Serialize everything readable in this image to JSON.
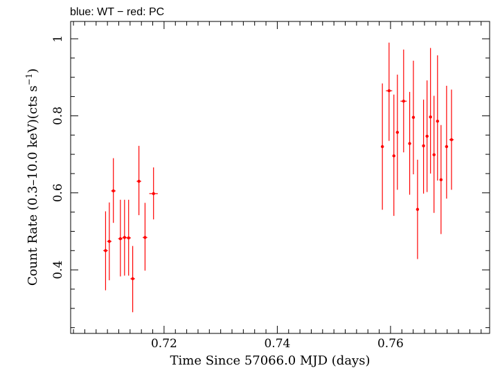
{
  "chart_data": {
    "type": "scatter",
    "title": "blue: WT − red: PC",
    "xlabel": "Time Since 57066.0 MJD (days)",
    "ylabel_prefix": "Count Rate (0.3–10.0 keV)(cts s",
    "ylabel_sup": "−1",
    "ylabel_suffix": ")",
    "xlim": [
      0.7035,
      0.7775
    ],
    "ylim": [
      0.235,
      1.045
    ],
    "xticks": [
      0.72,
      0.74,
      0.76
    ],
    "xtick_labels": [
      "0.72",
      "0.74",
      "0.76"
    ],
    "yticks": [
      0.4,
      0.6,
      0.8,
      1.0
    ],
    "ytick_labels": [
      "0.4",
      "0.6",
      "0.8",
      "1"
    ],
    "grid": false,
    "series": [
      {
        "color": "#ff0000",
        "points": [
          {
            "x": 0.70967,
            "y": 0.45,
            "xerr": 0.0004,
            "ylo": 0.347,
            "yhi": 0.552
          },
          {
            "x": 0.71033,
            "y": 0.474,
            "xerr": 0.0004,
            "ylo": 0.373,
            "yhi": 0.575
          },
          {
            "x": 0.71105,
            "y": 0.605,
            "xerr": 0.0004,
            "ylo": 0.522,
            "yhi": 0.69
          },
          {
            "x": 0.71229,
            "y": 0.481,
            "xerr": 0.0004,
            "ylo": 0.383,
            "yhi": 0.582
          },
          {
            "x": 0.71302,
            "y": 0.484,
            "xerr": 0.0004,
            "ylo": 0.385,
            "yhi": 0.582
          },
          {
            "x": 0.71374,
            "y": 0.483,
            "xerr": 0.0004,
            "ylo": 0.385,
            "yhi": 0.582
          },
          {
            "x": 0.71446,
            "y": 0.377,
            "xerr": 0.0004,
            "ylo": 0.29,
            "yhi": 0.462
          },
          {
            "x": 0.71556,
            "y": 0.63,
            "xerr": 0.0004,
            "ylo": 0.542,
            "yhi": 0.722
          },
          {
            "x": 0.71664,
            "y": 0.484,
            "xerr": 0.0004,
            "ylo": 0.398,
            "yhi": 0.574
          },
          {
            "x": 0.71814,
            "y": 0.598,
            "xerr": 0.00075,
            "ylo": 0.531,
            "yhi": 0.666
          },
          {
            "x": 0.75856,
            "y": 0.72,
            "xerr": 0.00025,
            "ylo": 0.556,
            "yhi": 0.884
          },
          {
            "x": 0.75974,
            "y": 0.865,
            "xerr": 0.00055,
            "ylo": 0.735,
            "yhi": 0.99
          },
          {
            "x": 0.76059,
            "y": 0.696,
            "xerr": 0.00025,
            "ylo": 0.54,
            "yhi": 0.855
          },
          {
            "x": 0.76121,
            "y": 0.757,
            "xerr": 0.00025,
            "ylo": 0.608,
            "yhi": 0.907
          },
          {
            "x": 0.76231,
            "y": 0.838,
            "xerr": 0.00055,
            "ylo": 0.705,
            "yhi": 0.972
          },
          {
            "x": 0.76338,
            "y": 0.728,
            "xerr": 0.00025,
            "ylo": 0.595,
            "yhi": 0.862
          },
          {
            "x": 0.76404,
            "y": 0.796,
            "xerr": 0.00025,
            "ylo": 0.648,
            "yhi": 0.943
          },
          {
            "x": 0.76477,
            "y": 0.557,
            "xerr": 0.00025,
            "ylo": 0.428,
            "yhi": 0.686
          },
          {
            "x": 0.76583,
            "y": 0.722,
            "xerr": 0.00025,
            "ylo": 0.598,
            "yhi": 0.842
          },
          {
            "x": 0.76645,
            "y": 0.747,
            "xerr": 0.00025,
            "ylo": 0.602,
            "yhi": 0.892
          },
          {
            "x": 0.76706,
            "y": 0.797,
            "xerr": 0.00025,
            "ylo": 0.65,
            "yhi": 0.976
          },
          {
            "x": 0.76768,
            "y": 0.699,
            "xerr": 0.00025,
            "ylo": 0.548,
            "yhi": 0.852
          },
          {
            "x": 0.7683,
            "y": 0.786,
            "xerr": 0.00025,
            "ylo": 0.632,
            "yhi": 0.957
          },
          {
            "x": 0.76892,
            "y": 0.634,
            "xerr": 0.00025,
            "ylo": 0.493,
            "yhi": 0.776
          },
          {
            "x": 0.7699,
            "y": 0.72,
            "xerr": 0.00025,
            "ylo": 0.585,
            "yhi": 0.878
          },
          {
            "x": 0.77077,
            "y": 0.738,
            "xerr": 0.0004,
            "ylo": 0.608,
            "yhi": 0.868
          }
        ]
      }
    ]
  }
}
